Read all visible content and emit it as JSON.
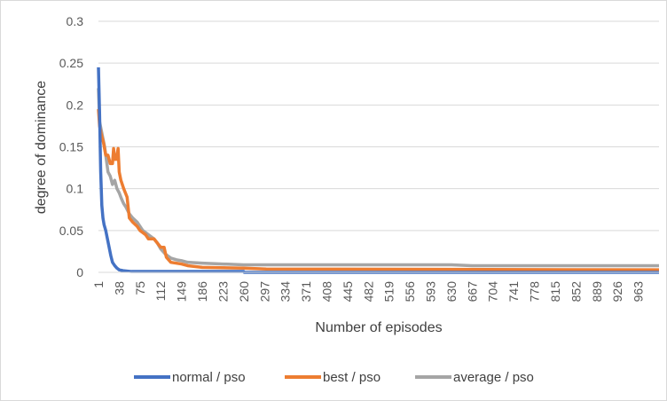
{
  "chart_data": {
    "type": "line",
    "title": "",
    "xlabel": "Number of episodes",
    "ylabel": "degree of dominance",
    "ylim": [
      0,
      0.3
    ],
    "xlim": [
      1,
      1000
    ],
    "yticks": [
      "0",
      "0.05",
      "0.1",
      "0.15",
      "0.2",
      "0.25",
      "0.3"
    ],
    "xticks": [
      1,
      38,
      75,
      112,
      149,
      186,
      223,
      260,
      297,
      334,
      371,
      408,
      445,
      482,
      519,
      556,
      593,
      630,
      667,
      704,
      741,
      778,
      815,
      852,
      889,
      926,
      963
    ],
    "grid": "horizontal",
    "legend_position": "bottom",
    "series": [
      {
        "name": "normal / pso",
        "color": "#4472C4",
        "points": [
          [
            1,
            0.245
          ],
          [
            3,
            0.19
          ],
          [
            5,
            0.12
          ],
          [
            7,
            0.08
          ],
          [
            9,
            0.065
          ],
          [
            11,
            0.057
          ],
          [
            14,
            0.05
          ],
          [
            17,
            0.04
          ],
          [
            20,
            0.03
          ],
          [
            23,
            0.02
          ],
          [
            26,
            0.012
          ],
          [
            30,
            0.008
          ],
          [
            34,
            0.005
          ],
          [
            38,
            0.003
          ],
          [
            45,
            0.002
          ],
          [
            60,
            0.001
          ],
          [
            100,
            0.001
          ],
          [
            200,
            0.001
          ],
          [
            260,
            0.001
          ],
          [
            261,
            0.0
          ],
          [
            1000,
            0.0
          ]
        ]
      },
      {
        "name": "best / pso",
        "color": "#ED7D31",
        "points": [
          [
            1,
            0.195
          ],
          [
            3,
            0.175
          ],
          [
            6,
            0.165
          ],
          [
            10,
            0.155
          ],
          [
            14,
            0.14
          ],
          [
            18,
            0.14
          ],
          [
            22,
            0.13
          ],
          [
            26,
            0.13
          ],
          [
            28,
            0.148
          ],
          [
            30,
            0.135
          ],
          [
            33,
            0.135
          ],
          [
            36,
            0.148
          ],
          [
            38,
            0.12
          ],
          [
            41,
            0.11
          ],
          [
            46,
            0.1
          ],
          [
            52,
            0.09
          ],
          [
            56,
            0.065
          ],
          [
            62,
            0.06
          ],
          [
            70,
            0.055
          ],
          [
            75,
            0.05
          ],
          [
            85,
            0.045
          ],
          [
            90,
            0.04
          ],
          [
            100,
            0.04
          ],
          [
            112,
            0.03
          ],
          [
            118,
            0.03
          ],
          [
            122,
            0.018
          ],
          [
            130,
            0.012
          ],
          [
            149,
            0.01
          ],
          [
            160,
            0.008
          ],
          [
            186,
            0.006
          ],
          [
            260,
            0.005
          ],
          [
            300,
            0.004
          ],
          [
            1000,
            0.003
          ]
        ]
      },
      {
        "name": "average / pso",
        "color": "#A5A5A5",
        "points": [
          [
            1,
            0.22
          ],
          [
            3,
            0.18
          ],
          [
            6,
            0.17
          ],
          [
            9,
            0.16
          ],
          [
            12,
            0.15
          ],
          [
            15,
            0.135
          ],
          [
            18,
            0.12
          ],
          [
            22,
            0.115
          ],
          [
            26,
            0.105
          ],
          [
            30,
            0.11
          ],
          [
            34,
            0.1
          ],
          [
            38,
            0.095
          ],
          [
            42,
            0.088
          ],
          [
            46,
            0.082
          ],
          [
            50,
            0.078
          ],
          [
            56,
            0.07
          ],
          [
            62,
            0.065
          ],
          [
            70,
            0.06
          ],
          [
            75,
            0.055
          ],
          [
            80,
            0.05
          ],
          [
            90,
            0.045
          ],
          [
            100,
            0.04
          ],
          [
            106,
            0.035
          ],
          [
            112,
            0.028
          ],
          [
            120,
            0.022
          ],
          [
            130,
            0.017
          ],
          [
            140,
            0.015
          ],
          [
            149,
            0.014
          ],
          [
            160,
            0.012
          ],
          [
            186,
            0.011
          ],
          [
            223,
            0.01
          ],
          [
            260,
            0.009
          ],
          [
            297,
            0.009
          ],
          [
            630,
            0.009
          ],
          [
            667,
            0.008
          ],
          [
            1000,
            0.008
          ]
        ]
      }
    ]
  }
}
